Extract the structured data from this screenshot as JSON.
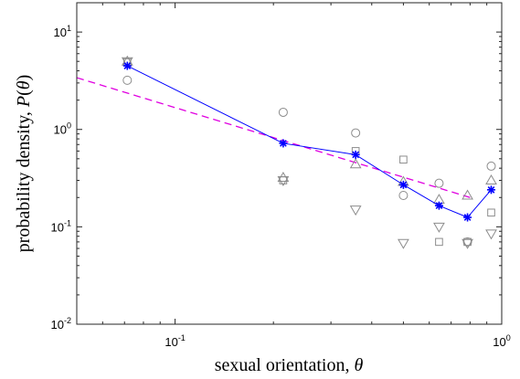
{
  "chart_data": {
    "type": "scatter",
    "title": "",
    "xlabel": "sexual orientation, θ",
    "ylabel": "probability density, P(θ)",
    "xlabel_parts": {
      "text": "sexual orientation, ",
      "symbol": "θ"
    },
    "ylabel_parts": {
      "text": "probability density, ",
      "symbol": "P",
      "open": "(",
      "arg": "θ",
      "close": ")"
    },
    "xscale": "log",
    "yscale": "log",
    "xlim": [
      0.05,
      1
    ],
    "ylim": [
      0.01,
      20
    ],
    "grid": false,
    "legend": "none",
    "xticks": [
      {
        "value": 0.1,
        "base": "10",
        "exp": "-1"
      },
      {
        "value": 1,
        "base": "10",
        "exp": "0"
      }
    ],
    "yticks": [
      {
        "value": 0.01,
        "base": "10",
        "exp": "-2"
      },
      {
        "value": 0.1,
        "base": "10",
        "exp": "-1"
      },
      {
        "value": 1,
        "base": "10",
        "exp": "0"
      },
      {
        "value": 10,
        "base": "10",
        "exp": "1"
      }
    ],
    "x": [
      0.0714,
      0.2143,
      0.3571,
      0.5,
      0.6429,
      0.7857,
      0.9286
    ],
    "series": [
      {
        "marker": "circle",
        "color": "#8c8c8c",
        "values": [
          3.2,
          1.5,
          0.92,
          0.21,
          0.28,
          0.07,
          0.42
        ]
      },
      {
        "marker": "square",
        "color": "#8c8c8c",
        "values": [
          4.9,
          0.3,
          0.6,
          0.49,
          0.07,
          0.07,
          0.14
        ]
      },
      {
        "marker": "triangle-up",
        "color": "#8c8c8c",
        "values": [
          5.0,
          0.32,
          0.44,
          0.29,
          0.19,
          0.21,
          0.3
        ]
      },
      {
        "marker": "triangle-down",
        "color": "#8c8c8c",
        "values": [
          5.0,
          0.3,
          0.15,
          0.068,
          0.1,
          0.068,
          0.085
        ]
      },
      {
        "marker": "asterisk",
        "line": "solid",
        "color": "#0000ff",
        "values": [
          4.5,
          0.72,
          0.55,
          0.27,
          0.165,
          0.125,
          0.24
        ]
      }
    ],
    "fit": {
      "line": "dashed",
      "color": "#e000e0",
      "x": [
        0.05,
        0.8
      ],
      "y": [
        3.4,
        0.2
      ]
    }
  }
}
